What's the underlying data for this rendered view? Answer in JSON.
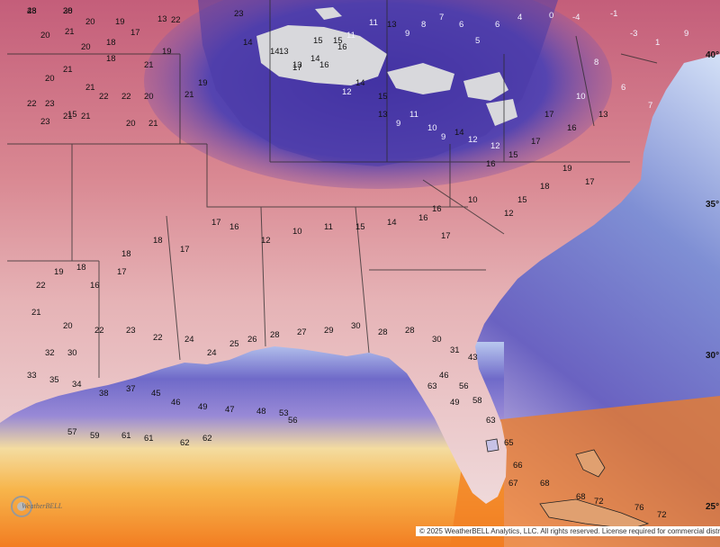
{
  "map": {
    "latitude_labels": [
      {
        "text": "40°"
      },
      {
        "text": "35°"
      },
      {
        "text": "30°"
      },
      {
        "text": "25°"
      }
    ],
    "temperature_labels": [
      "23",
      "20",
      "19",
      "13",
      "20",
      "21",
      "20",
      "17",
      "18",
      "20",
      "21",
      "18",
      "21",
      "21",
      "15",
      "20",
      "23",
      "22",
      "21",
      "23",
      "22",
      "22",
      "20",
      "20",
      "21",
      "22",
      "21",
      "19",
      "21",
      "19",
      "23",
      "14",
      "13",
      "17",
      "16",
      "16",
      "12",
      "14",
      "15",
      "13",
      "9",
      "11",
      "10",
      "9",
      "14",
      "12",
      "12",
      "15",
      "14",
      "13",
      "14",
      "15",
      "11",
      "11",
      "13",
      "9",
      "8",
      "7",
      "6",
      "5",
      "6",
      "4",
      "0",
      "-4",
      "-1",
      "-3",
      "1",
      "9",
      "8",
      "6",
      "7",
      "10",
      "13",
      "17",
      "16",
      "17",
      "15",
      "16",
      "19",
      "17",
      "18",
      "15",
      "10",
      "12",
      "16",
      "17",
      "16",
      "14",
      "15",
      "11",
      "10",
      "12",
      "16",
      "17",
      "17",
      "18",
      "18",
      "17",
      "16",
      "18",
      "19",
      "22",
      "21",
      "20",
      "22",
      "23",
      "22",
      "24",
      "24",
      "25",
      "26",
      "28",
      "27",
      "29",
      "30",
      "28",
      "28",
      "30",
      "31",
      "32",
      "30",
      "33",
      "35",
      "34",
      "38",
      "37",
      "45",
      "46",
      "49",
      "47",
      "48",
      "53",
      "56",
      "57",
      "59",
      "61",
      "61",
      "62",
      "62",
      "56",
      "58",
      "63",
      "65",
      "66",
      "67",
      "68",
      "68",
      "72",
      "76",
      "72",
      "63",
      "49",
      "46",
      "43",
      "48",
      "38"
    ],
    "logo_text": "WeatherBELL",
    "copyright": "© 2025 WeatherBELL Analytics, LLC. All rights reserved. License required for commercial distribution"
  },
  "colors": {
    "land_warm": "#d9898f",
    "land_cold": "#4b3aa8",
    "ocean_cold": "#6a5fc0",
    "ocean_warm": "#f7a12a",
    "gulf_hot": "#f06b1c"
  }
}
